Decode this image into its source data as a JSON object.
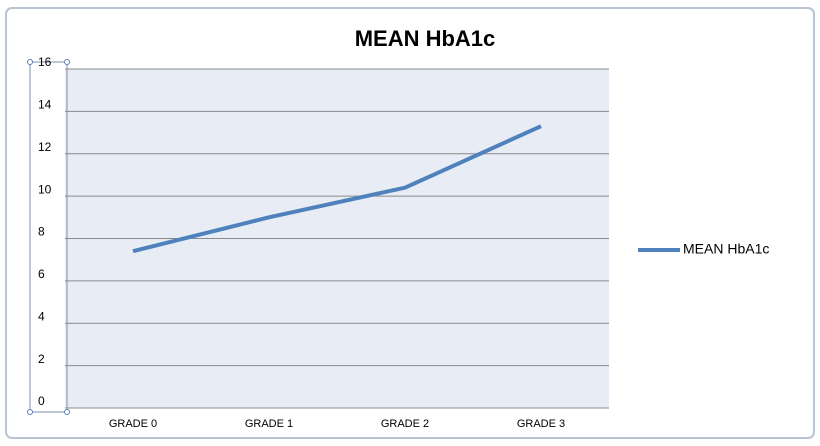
{
  "chart_data": {
    "type": "line",
    "title": "MEAN HbA1c",
    "categories": [
      "GRADE 0",
      "GRADE 1",
      "GRADE 2",
      "GRADE 3"
    ],
    "series": [
      {
        "name": "MEAN HbA1c",
        "color": "#4f81bd",
        "values": [
          7.4,
          9.0,
          10.4,
          13.3
        ]
      }
    ],
    "ylim": [
      0,
      16
    ],
    "yticks": [
      0,
      2,
      4,
      6,
      8,
      10,
      12,
      14,
      16
    ],
    "grid": true,
    "legend": "right"
  }
}
